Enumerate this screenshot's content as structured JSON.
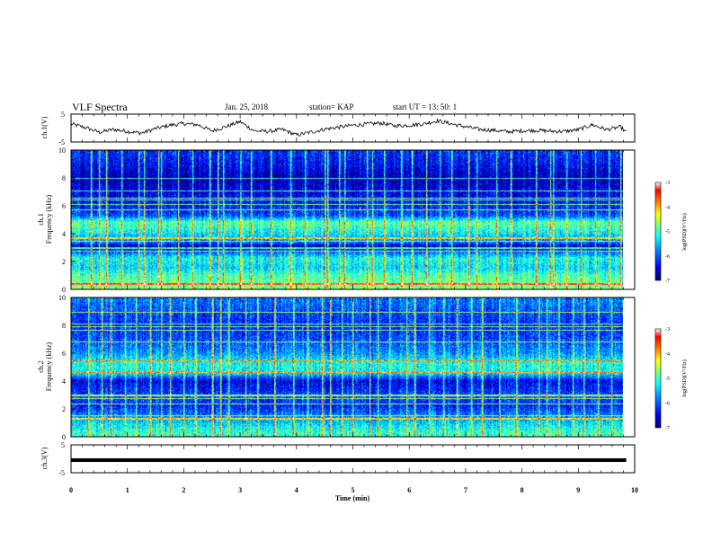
{
  "header": {
    "title": "VLF Spectra",
    "date": "Jan. 25, 2018",
    "station": "station= KAP",
    "start": "start  UT =   13: 50: 1"
  },
  "chart_data": [
    {
      "type": "line",
      "panel": "ch1-waveform",
      "ylabel": "ch.1(V)",
      "ylim": [
        -5,
        5
      ],
      "xlim": [
        0,
        10
      ],
      "yticks": [
        "5",
        "-5"
      ],
      "x": [
        0,
        0.25,
        0.5,
        0.75,
        1,
        1.25,
        1.5,
        1.75,
        2,
        2.25,
        2.5,
        2.75,
        3,
        3.25,
        3.5,
        3.75,
        4,
        4.25,
        4.5,
        4.75,
        5,
        5.25,
        5.5,
        5.75,
        6,
        6.25,
        6.5,
        6.75,
        7,
        7.25,
        7.5,
        7.75,
        8,
        8.25,
        8.5,
        8.75,
        9,
        9.25,
        9.5,
        9.75,
        9.85
      ],
      "y": [
        1.5,
        0.2,
        -1.5,
        -0.5,
        -1.2,
        -1.8,
        -0.2,
        1.0,
        1.6,
        1.2,
        -1.0,
        0.5,
        2.3,
        -1.0,
        -1.2,
        -0.5,
        -2.5,
        -1.5,
        -0.4,
        0.3,
        1.0,
        1.4,
        1.8,
        0.8,
        1.0,
        1.5,
        2.6,
        1.5,
        0.5,
        -0.5,
        -0.8,
        -1.3,
        -1.0,
        -0.8,
        -1.1,
        -1.2,
        -0.6,
        1.2,
        -0.6,
        0.4,
        -1.6
      ]
    },
    {
      "type": "heatmap",
      "panel": "ch1-spectrogram",
      "ylabel": "ch.1 Frequency (kHz)",
      "ylim": [
        0,
        10
      ],
      "xlim": [
        0,
        10
      ],
      "yticks": [
        "0",
        "2",
        "4",
        "6",
        "8",
        "10"
      ],
      "colorbar_label": "log(PSD)(V²/Hz)",
      "colorbar_ticks": [
        "-3",
        "-4",
        "-5",
        "-6",
        "-7"
      ],
      "colorbar_range": [
        -7,
        -3
      ],
      "band_profile": [
        {
          "f": 0.3,
          "v": -5.0
        },
        {
          "f": 1.0,
          "v": -5.2
        },
        {
          "f": 1.5,
          "v": -5.6
        },
        {
          "f": 2.2,
          "v": -5.4
        },
        {
          "f": 2.8,
          "v": -6.3
        },
        {
          "f": 3.0,
          "v": -6.9
        },
        {
          "f": 3.4,
          "v": -6.0
        },
        {
          "f": 4.2,
          "v": -5.4
        },
        {
          "f": 4.8,
          "v": -5.1
        },
        {
          "f": 5.3,
          "v": -6.2
        },
        {
          "f": 6.0,
          "v": -6.4
        },
        {
          "f": 7.0,
          "v": -6.6
        },
        {
          "f": 8.0,
          "v": -6.8
        },
        {
          "f": 9.0,
          "v": -6.5
        },
        {
          "f": 10.0,
          "v": -6.3
        }
      ],
      "spheric_times_min": [
        0.35,
        0.5,
        0.62,
        0.9,
        1.2,
        1.3,
        1.55,
        1.6,
        1.9,
        2.15,
        2.45,
        2.6,
        2.7,
        3.0,
        3.2,
        3.55,
        3.9,
        4.15,
        4.5,
        4.55,
        4.75,
        4.85,
        5.25,
        5.35,
        5.55,
        5.85,
        6.05,
        6.3,
        6.55,
        6.75,
        7.05,
        7.2,
        7.55,
        7.8,
        8.25,
        8.5,
        8.55,
        8.8,
        9.05,
        9.3,
        9.55,
        9.75
      ]
    },
    {
      "type": "heatmap",
      "panel": "ch2-spectrogram",
      "ylabel": "ch.2 Frequency (kHz)",
      "ylim": [
        0,
        10
      ],
      "xlim": [
        0,
        10
      ],
      "yticks": [
        "0",
        "2",
        "4",
        "6",
        "8",
        "10"
      ],
      "colorbar_label": "log(PSD)(V²/Hz)",
      "colorbar_ticks": [
        "-3",
        "-4",
        "-5",
        "-6",
        "-7"
      ],
      "colorbar_range": [
        -7,
        -3
      ],
      "band_profile": [
        {
          "f": 0.3,
          "v": -5.3
        },
        {
          "f": 0.9,
          "v": -5.6
        },
        {
          "f": 1.5,
          "v": -6.0
        },
        {
          "f": 2.2,
          "v": -6.4
        },
        {
          "f": 2.8,
          "v": -6.2
        },
        {
          "f": 3.4,
          "v": -6.4
        },
        {
          "f": 4.0,
          "v": -6.6
        },
        {
          "f": 4.6,
          "v": -5.5
        },
        {
          "f": 5.3,
          "v": -5.4
        },
        {
          "f": 6.0,
          "v": -5.9
        },
        {
          "f": 7.0,
          "v": -6.2
        },
        {
          "f": 8.0,
          "v": -6.4
        },
        {
          "f": 9.0,
          "v": -6.2
        },
        {
          "f": 10.0,
          "v": -6.0
        }
      ],
      "spheric_times_min": [
        0.3,
        0.55,
        0.7,
        0.95,
        1.15,
        1.4,
        1.6,
        1.75,
        2.0,
        2.2,
        2.5,
        2.65,
        2.8,
        3.1,
        3.3,
        3.6,
        3.95,
        4.2,
        4.45,
        4.6,
        4.8,
        5.0,
        5.3,
        5.45,
        5.65,
        5.95,
        6.1,
        6.35,
        6.6,
        6.85,
        7.1,
        7.3,
        7.6,
        7.9,
        8.3,
        8.45,
        8.65,
        8.9,
        9.1,
        9.35,
        9.6,
        9.8
      ]
    },
    {
      "type": "line",
      "panel": "ch3-waveform",
      "ylabel": "ch.3(V)",
      "ylim": [
        -5,
        5
      ],
      "xlim": [
        0,
        10
      ],
      "yticks": [
        "5",
        "-5"
      ],
      "x": [
        0,
        9.85
      ],
      "y": [
        -0.5,
        -0.5
      ]
    }
  ],
  "xaxis": {
    "label": "Time  (min)",
    "ticks": [
      "0",
      "1",
      "2",
      "3",
      "4",
      "5",
      "6",
      "7",
      "8",
      "9",
      "10"
    ]
  },
  "colors": {
    "colormap": [
      "#00007f",
      "#0000ff",
      "#007fff",
      "#00ffff",
      "#7fff7f",
      "#ffff00",
      "#ff7f00",
      "#ff0000",
      "#ffffff"
    ]
  }
}
